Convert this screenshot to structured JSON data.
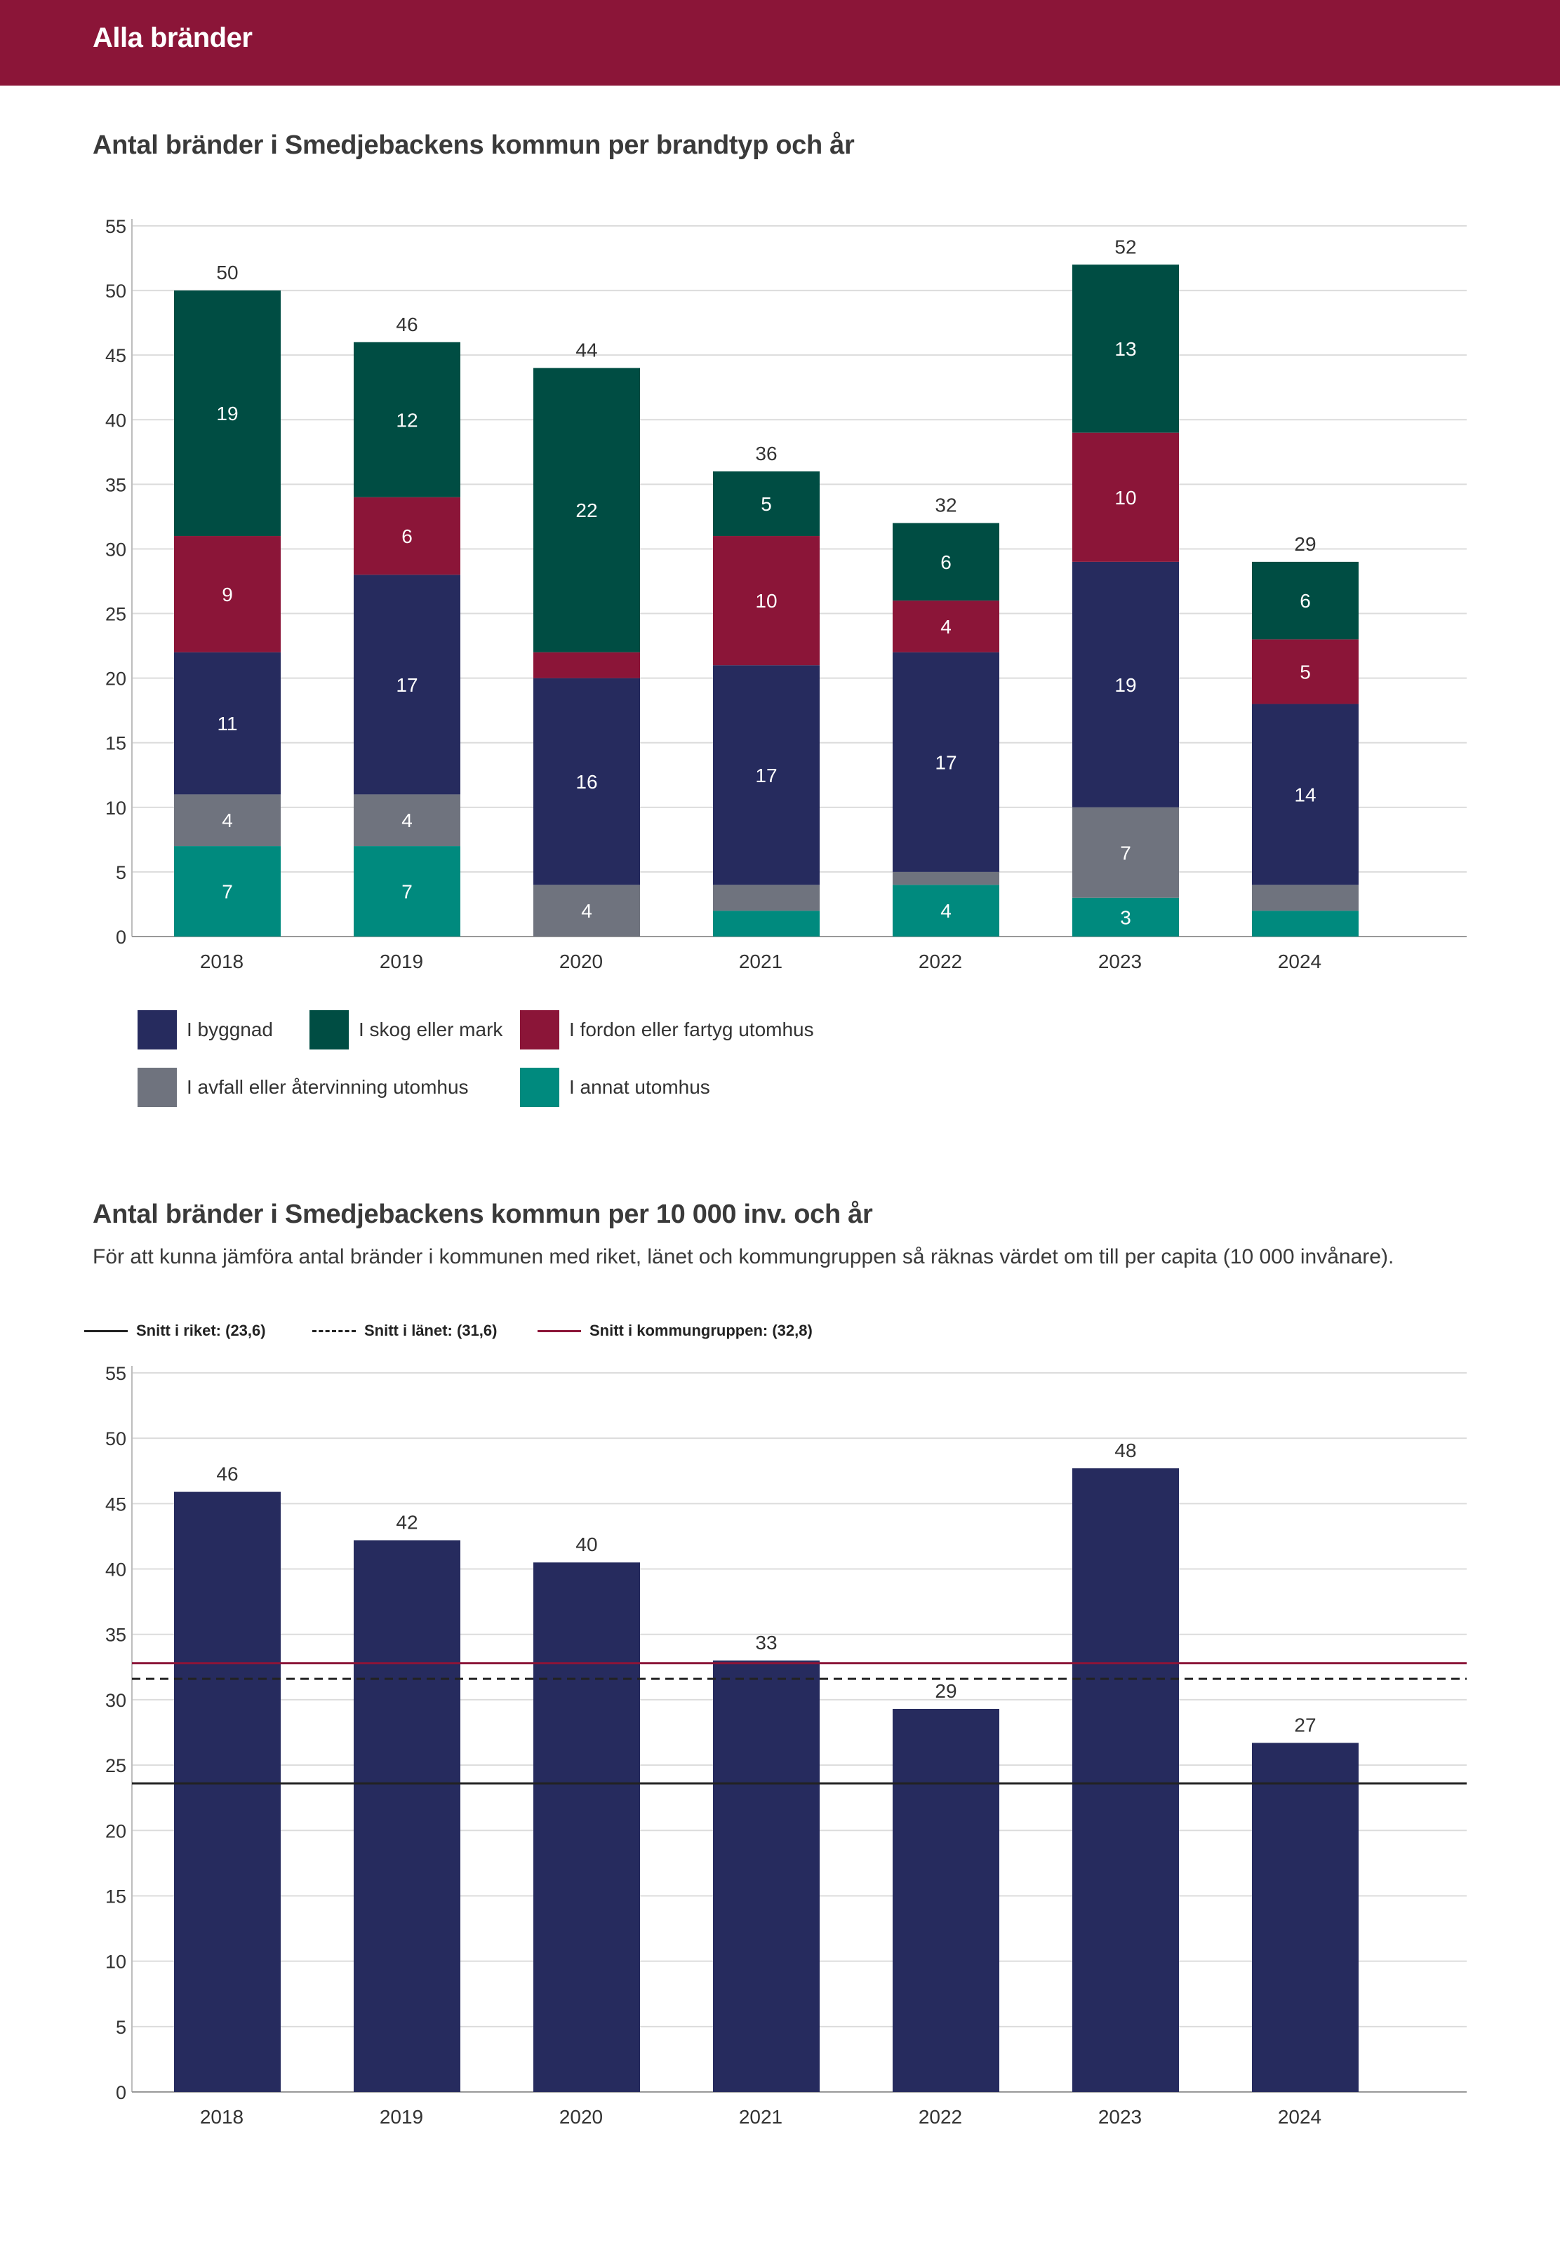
{
  "header": {
    "title": "Alla bränder"
  },
  "colors": {
    "header_bg": "#8b1538",
    "byggnad": "#262b5e",
    "skog": "#004d43",
    "fordon": "#8b1538",
    "avfall": "#6f737e",
    "annat": "#008a7e",
    "bar_per_capita": "#262b5e",
    "riket_line": "#222222",
    "lanet_line": "#222222",
    "kommungrupp_line": "#8b1538"
  },
  "chart1": {
    "title": "Antal bränder i Smedjebackens kommun per brandtyp och år"
  },
  "chart2": {
    "title": "Antal bränder i Smedjebackens kommun per 10 000 inv. och år",
    "description": "För att kunna jämföra antal bränder i kommunen med riket, länet och kommungruppen så räknas värdet om till per capita (10 000 invånare)."
  },
  "chart_data": [
    {
      "type": "bar",
      "stacked": true,
      "title": "Antal bränder i Smedjebackens kommun per brandtyp och år",
      "categories": [
        "2018",
        "2019",
        "2020",
        "2021",
        "2022",
        "2023",
        "2024"
      ],
      "ylim": [
        0,
        55
      ],
      "yticks": [
        0,
        5,
        10,
        15,
        20,
        25,
        30,
        35,
        40,
        45,
        50,
        55
      ],
      "grid": true,
      "legend_position": "bottom",
      "series": [
        {
          "name": "I annat utomhus",
          "color": "#008a7e",
          "values": [
            7,
            7,
            0,
            2,
            4,
            3,
            2
          ],
          "labels": [
            "7",
            "7",
            "",
            "",
            "4",
            "3",
            ""
          ]
        },
        {
          "name": "I avfall eller återvinning utomhus",
          "color": "#6f737e",
          "values": [
            4,
            4,
            4,
            2,
            1,
            7,
            2
          ],
          "labels": [
            "4",
            "4",
            "4",
            "",
            "",
            "7",
            ""
          ]
        },
        {
          "name": "I byggnad",
          "color": "#262b5e",
          "values": [
            11,
            17,
            16,
            17,
            17,
            19,
            14
          ],
          "labels": [
            "11",
            "17",
            "16",
            "17",
            "17",
            "19",
            "14"
          ]
        },
        {
          "name": "I fordon eller fartyg utomhus",
          "color": "#8b1538",
          "values": [
            9,
            6,
            2,
            10,
            4,
            10,
            5
          ],
          "labels": [
            "9",
            "6",
            "",
            "10",
            "4",
            "10",
            "5"
          ]
        },
        {
          "name": "I skog eller mark",
          "color": "#004d43",
          "values": [
            19,
            12,
            22,
            5,
            6,
            13,
            6
          ],
          "labels": [
            "19",
            "12",
            "22",
            "5",
            "6",
            "13",
            "6"
          ]
        }
      ],
      "totals": [
        "50",
        "46",
        "44",
        "36",
        "32",
        "52",
        "29"
      ],
      "legend": [
        [
          "I byggnad",
          "#262b5e"
        ],
        [
          "I skog eller mark",
          "#004d43"
        ],
        [
          "I fordon eller fartyg utomhus",
          "#8b1538"
        ],
        [
          "I avfall eller återvinning utomhus",
          "#6f737e"
        ],
        [
          "I annat utomhus",
          "#008a7e"
        ]
      ]
    },
    {
      "type": "bar",
      "title": "Antal bränder i Smedjebackens kommun per 10 000 inv. och år",
      "categories": [
        "2018",
        "2019",
        "2020",
        "2021",
        "2022",
        "2023",
        "2024"
      ],
      "values": [
        45.9,
        42.2,
        40.5,
        33.0,
        29.3,
        47.7,
        26.7
      ],
      "value_labels": [
        "46",
        "42",
        "40",
        "33",
        "29",
        "48",
        "27"
      ],
      "ylim": [
        0,
        55
      ],
      "yticks": [
        0,
        5,
        10,
        15,
        20,
        25,
        30,
        35,
        40,
        45,
        50,
        55
      ],
      "grid": true,
      "legend_position": "top-left",
      "reference_lines": [
        {
          "name": "Snitt i riket: (23,6)",
          "value": 23.6,
          "style": "solid",
          "color": "#222222"
        },
        {
          "name": "Snitt i länet: (31,6)",
          "value": 31.6,
          "style": "dashed",
          "color": "#222222"
        },
        {
          "name": "Snitt i kommungruppen: (32,8)",
          "value": 32.8,
          "style": "solid",
          "color": "#8b1538"
        }
      ]
    }
  ]
}
